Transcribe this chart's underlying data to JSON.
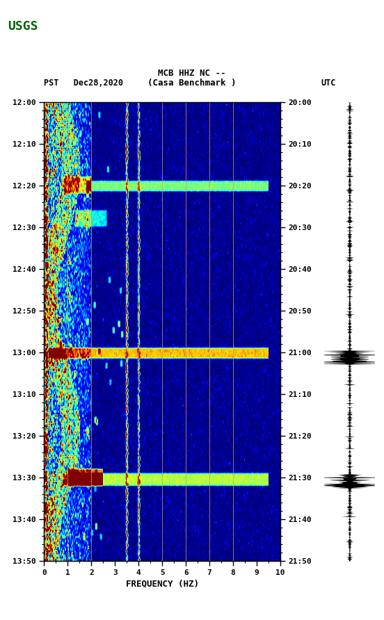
{
  "title_line1": "MCB HHZ NC --",
  "title_line2": "(Casa Benchmark )",
  "label_left": "PST   Dec28,2020",
  "label_right": "UTC",
  "freq_min": 0,
  "freq_max": 10,
  "freq_ticks": [
    0,
    1,
    2,
    3,
    4,
    5,
    6,
    7,
    8,
    9,
    10
  ],
  "freq_label": "FREQUENCY (HZ)",
  "pst_ticks": [
    "12:00",
    "12:10",
    "12:20",
    "12:30",
    "12:40",
    "12:50",
    "13:00",
    "13:10",
    "13:20",
    "13:30",
    "13:40",
    "13:50"
  ],
  "utc_ticks": [
    "20:00",
    "20:10",
    "20:20",
    "20:30",
    "20:40",
    "20:50",
    "21:00",
    "21:10",
    "21:20",
    "21:30",
    "21:40",
    "21:50"
  ],
  "colormap": "jet",
  "vline_freqs": [
    1.0,
    2.0,
    3.5,
    4.0,
    5.0,
    6.0,
    7.0,
    8.0
  ],
  "n_time": 220,
  "n_freq": 300
}
